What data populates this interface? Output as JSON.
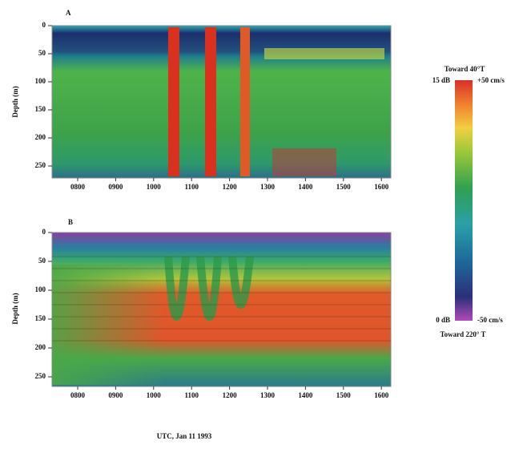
{
  "panels": [
    {
      "label": "A",
      "y_axis_label": "Depth (m)",
      "yticks": [
        0,
        50,
        100,
        150,
        200,
        250
      ],
      "xticks": [
        "0800",
        "0900",
        "1000",
        "1100",
        "1200",
        "1300",
        "1400",
        "1500",
        "1600"
      ]
    },
    {
      "label": "B",
      "y_axis_label": "Depth (m)",
      "yticks": [
        0,
        50,
        100,
        150,
        200,
        250
      ],
      "xticks": [
        "0800",
        "0900",
        "1000",
        "1100",
        "1200",
        "1300",
        "1400",
        "1500",
        "1600"
      ]
    }
  ],
  "colorbar": {
    "top_title": "Toward 40°T",
    "top_left": "15 dB",
    "top_right": "+50 cm/s",
    "bottom_left": "0 dB",
    "bottom_right": "-50 cm/s",
    "bottom_title": "Toward 220° T"
  },
  "x_axis_label": "UTC, Jan 11  1993"
}
